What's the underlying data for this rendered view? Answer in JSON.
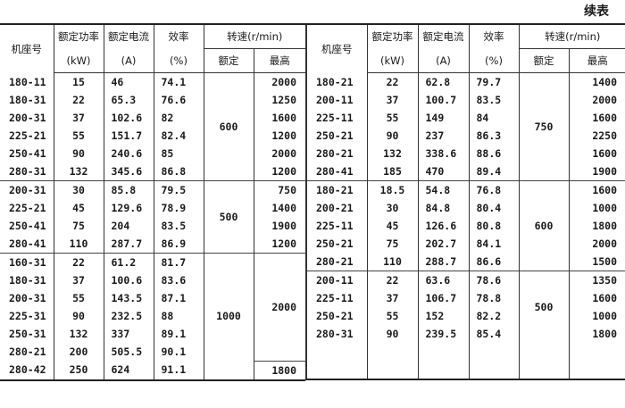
{
  "caption": "续表",
  "headers": {
    "model": "机座号",
    "power": "额定功率",
    "power_unit": "(kW)",
    "current": "额定电流",
    "current_unit": "(A)",
    "eff": "效率",
    "eff_unit": "(%)",
    "speed": "转速(r/min)",
    "rated": "额定",
    "max": "最高"
  },
  "left": {
    "groups": [
      {
        "rated": "600",
        "rows": [
          [
            "180-11",
            "15",
            "46",
            "74.1",
            "2000"
          ],
          [
            "180-31",
            "22",
            "65.3",
            "76.6",
            "1250"
          ],
          [
            "200-31",
            "37",
            "102.6",
            "82",
            "1600"
          ],
          [
            "225-21",
            "55",
            "151.7",
            "82.4",
            "1200"
          ],
          [
            "250-41",
            "90",
            "240.6",
            "85",
            "2000"
          ],
          [
            "280-31",
            "132",
            "345.6",
            "86.8",
            "1200"
          ]
        ]
      },
      {
        "rated": "500",
        "rows": [
          [
            "200-31",
            "30",
            "85.8",
            "79.5",
            "750"
          ],
          [
            "225-21",
            "45",
            "129.6",
            "78.9",
            "1400"
          ],
          [
            "250-41",
            "75",
            "204",
            "83.5",
            "1900"
          ],
          [
            "280-41",
            "110",
            "287.7",
            "86.9",
            "1200"
          ]
        ]
      },
      {
        "rated": "1000",
        "max_spans": [
          {
            "value": "2000",
            "rows": 6
          },
          {
            "value": "1800",
            "rows": 1
          }
        ],
        "rows": [
          [
            "160-31",
            "22",
            "61.2",
            "81.7"
          ],
          [
            "180-31",
            "37",
            "100.6",
            "83.6"
          ],
          [
            "200-31",
            "55",
            "143.5",
            "87.1"
          ],
          [
            "225-31",
            "90",
            "232.5",
            "88"
          ],
          [
            "250-31",
            "132",
            "337",
            "89.1"
          ],
          [
            "280-21",
            "200",
            "505.5",
            "90.1"
          ],
          [
            "280-42",
            "250",
            "624",
            "91.1"
          ]
        ]
      }
    ]
  },
  "right": {
    "groups": [
      {
        "rated": "750",
        "rows": [
          [
            "180-21",
            "22",
            "62.8",
            "79.7",
            "1400"
          ],
          [
            "200-11",
            "37",
            "100.7",
            "83.5",
            "2000"
          ],
          [
            "225-11",
            "55",
            "149",
            "84",
            "1600"
          ],
          [
            "250-21",
            "90",
            "237",
            "86.3",
            "2250"
          ],
          [
            "280-21",
            "132",
            "338.6",
            "88.6",
            "1600"
          ],
          [
            "280-41",
            "185",
            "470",
            "89.4",
            "1900"
          ]
        ]
      },
      {
        "rated": "600",
        "rows": [
          [
            "180-21",
            "18.5",
            "54.8",
            "76.8",
            "1600"
          ],
          [
            "200-21",
            "30",
            "84.8",
            "80.4",
            "1000"
          ],
          [
            "225-11",
            "45",
            "126.6",
            "80.8",
            "1800"
          ],
          [
            "250-21",
            "75",
            "202.7",
            "84.1",
            "2000"
          ],
          [
            "280-21",
            "110",
            "288.7",
            "86.6",
            "1500"
          ]
        ]
      },
      {
        "rated": "500",
        "rows": [
          [
            "200-11",
            "22",
            "63.6",
            "78.6",
            "1350"
          ],
          [
            "225-11",
            "37",
            "106.7",
            "78.8",
            "1600"
          ],
          [
            "250-21",
            "55",
            "152",
            "82.2",
            "1000"
          ],
          [
            "280-31",
            "90",
            "239.5",
            "85.4",
            "1800"
          ]
        ]
      }
    ]
  }
}
